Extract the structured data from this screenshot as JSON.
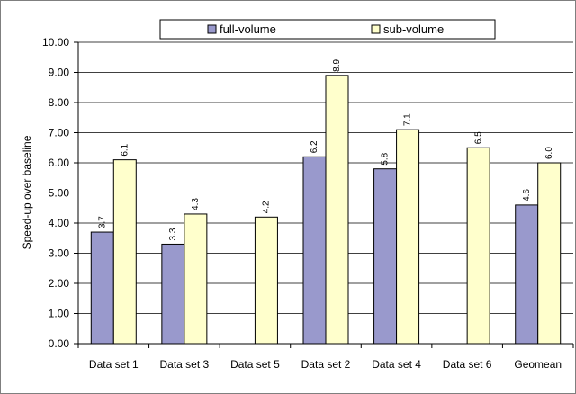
{
  "chart_data": {
    "type": "bar",
    "title": "",
    "xlabel": "",
    "ylabel": "Speed-up over baseline",
    "categories": [
      "Data set 1",
      "Data set 3",
      "Data set 5",
      "Data set 2",
      "Data set 4",
      "Data set 6",
      "Geomean"
    ],
    "series": [
      {
        "name": "full-volume",
        "values": [
          3.7,
          3.3,
          null,
          6.2,
          5.8,
          null,
          4.6
        ],
        "labels": [
          "3.7",
          "3.3",
          null,
          "6.2",
          "5.8",
          null,
          "4.6"
        ],
        "color": "#9999cc"
      },
      {
        "name": "sub-volume",
        "values": [
          6.1,
          4.3,
          4.2,
          8.9,
          7.1,
          6.5,
          6.0
        ],
        "labels": [
          "6.1",
          "4.3",
          "4.2",
          "8.9",
          "7.1",
          "6.5",
          "6.0"
        ],
        "color": "#ffffcc"
      }
    ],
    "ylim": [
      0,
      10
    ],
    "yticks": [
      "0.00",
      "1.00",
      "2.00",
      "3.00",
      "4.00",
      "5.00",
      "6.00",
      "7.00",
      "8.00",
      "9.00",
      "10.00"
    ],
    "grid": true,
    "legend_position": "top"
  }
}
